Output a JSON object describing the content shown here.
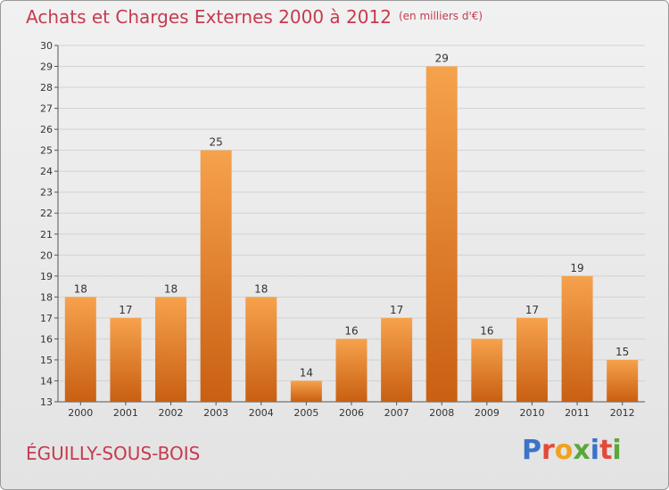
{
  "title": "Achats et Charges Externes 2000 à 2012",
  "subtitle": "(en milliers d'€)",
  "commune": "ÉGUILLY-SOUS-BOIS",
  "logo": {
    "text": "Proxiti",
    "letters": [
      {
        "ch": "P",
        "color": "#3a73c9"
      },
      {
        "ch": "r",
        "color": "#e34a3a"
      },
      {
        "ch": "o",
        "color": "#f1a21c"
      },
      {
        "ch": "x",
        "color": "#5aa83a"
      },
      {
        "ch": "i",
        "color": "#3a73c9"
      },
      {
        "ch": "t",
        "color": "#e34a3a"
      },
      {
        "ch": "i",
        "color": "#5aa83a"
      }
    ]
  },
  "colors": {
    "title": "#c63a4f",
    "bar_top": "#f6a24c",
    "bar_bottom": "#c95f12",
    "grid": "#d2d2d2"
  },
  "chart_data": {
    "type": "bar",
    "categories": [
      "2000",
      "2001",
      "2002",
      "2003",
      "2004",
      "2005",
      "2006",
      "2007",
      "2008",
      "2009",
      "2010",
      "2011",
      "2012"
    ],
    "values": [
      18,
      17,
      18,
      25,
      18,
      14,
      16,
      17,
      29,
      16,
      17,
      19,
      15
    ],
    "ylim": [
      13,
      30
    ],
    "yticks": [
      13,
      14,
      15,
      16,
      17,
      18,
      19,
      20,
      21,
      22,
      23,
      24,
      25,
      26,
      27,
      28,
      29,
      30
    ],
    "grid": true,
    "xlabel": "",
    "ylabel": ""
  }
}
